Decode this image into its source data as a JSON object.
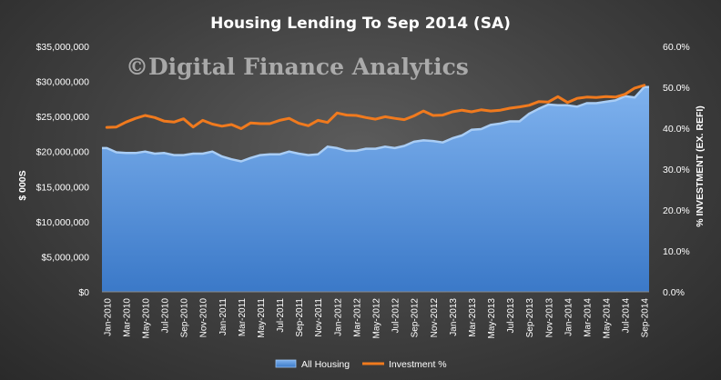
{
  "chart_data": {
    "type": "area+line",
    "title": "Housing  Lending To Sep 2014 (SA)",
    "watermark": "©Digital Finance Analytics",
    "ylabel_left": "$ 000S",
    "ylabel_right": "% INVESTMENT (EX. REFI)",
    "ylim_left": [
      0,
      35000000
    ],
    "ylim_right": [
      0,
      60
    ],
    "yticks_left": [
      "$0",
      "$5,000,000",
      "$10,000,000",
      "$15,000,000",
      "$20,000,000",
      "$25,000,000",
      "$30,000,000",
      "$35,000,000"
    ],
    "yticks_right": [
      "0.0%",
      "10.0%",
      "20.0%",
      "30.0%",
      "40.0%",
      "50.0%",
      "60.0%"
    ],
    "x": [
      "Jan-2010",
      "Feb-2010",
      "Mar-2010",
      "Apr-2010",
      "May-2010",
      "Jun-2010",
      "Jul-2010",
      "Aug-2010",
      "Sep-2010",
      "Oct-2010",
      "Nov-2010",
      "Dec-2010",
      "Jan-2011",
      "Feb-2011",
      "Mar-2011",
      "Apr-2011",
      "May-2011",
      "Jun-2011",
      "Jul-2011",
      "Aug-2011",
      "Sep-2011",
      "Oct-2011",
      "Nov-2011",
      "Dec-2011",
      "Jan-2012",
      "Feb-2012",
      "Mar-2012",
      "Apr-2012",
      "May-2012",
      "Jun-2012",
      "Jul-2012",
      "Aug-2012",
      "Sep-2012",
      "Oct-2012",
      "Nov-2012",
      "Dec-2012",
      "Jan-2013",
      "Feb-2013",
      "Mar-2013",
      "Apr-2013",
      "May-2013",
      "Jun-2013",
      "Jul-2013",
      "Aug-2013",
      "Sep-2013",
      "Oct-2013",
      "Nov-2013",
      "Dec-2013",
      "Jan-2014",
      "Feb-2014",
      "Mar-2014",
      "Apr-2014",
      "May-2014",
      "Jun-2014",
      "Jul-2014",
      "Aug-2014",
      "Sep-2014"
    ],
    "x_tick_labels": [
      "Jan-2010",
      "Mar-2010",
      "May-2010",
      "Jul-2010",
      "Sep-2010",
      "Nov-2010",
      "Jan-2011",
      "Mar-2011",
      "May-2011",
      "Jul-2011",
      "Sep-2011",
      "Nov-2011",
      "Jan-2012",
      "Mar-2012",
      "May-2012",
      "Jul-2012",
      "Sep-2012",
      "Nov-2012",
      "Jan-2013",
      "Mar-2013",
      "May-2013",
      "Jul-2013",
      "Sep-2013",
      "Nov-2013",
      "Jan-2014",
      "Mar-2014",
      "May-2014",
      "Jul-2014",
      "Sep-2014"
    ],
    "series": [
      {
        "name": "All Housing",
        "axis": "left",
        "style": "area",
        "color": "#4f8fd8",
        "values": [
          20500000,
          19900000,
          19800000,
          19800000,
          20000000,
          19700000,
          19800000,
          19500000,
          19500000,
          19700000,
          19700000,
          20000000,
          19300000,
          18900000,
          18600000,
          19100000,
          19500000,
          19600000,
          19600000,
          20000000,
          19700000,
          19500000,
          19600000,
          20700000,
          20500000,
          20100000,
          20100000,
          20400000,
          20400000,
          20700000,
          20500000,
          20800000,
          21400000,
          21600000,
          21500000,
          21300000,
          21900000,
          22300000,
          23100000,
          23200000,
          23800000,
          24000000,
          24300000,
          24300000,
          25400000,
          26100000,
          26700000,
          26600000,
          26600000,
          26400000,
          26900000,
          26900000,
          27100000,
          27300000,
          27900000,
          27700000,
          29200000
        ]
      },
      {
        "name": "Investment %",
        "axis": "right",
        "style": "line",
        "color": "#f07a1e",
        "values": [
          40.2,
          40.3,
          41.5,
          42.4,
          43.1,
          42.6,
          41.7,
          41.5,
          42.3,
          40.3,
          41.9,
          41.0,
          40.5,
          40.9,
          39.9,
          41.3,
          41.1,
          41.1,
          41.9,
          42.4,
          41.2,
          40.6,
          41.9,
          41.4,
          43.7,
          43.2,
          43.1,
          42.6,
          42.2,
          42.8,
          42.4,
          42.1,
          43.0,
          44.2,
          43.1,
          43.2,
          44.0,
          44.4,
          44.0,
          44.5,
          44.2,
          44.4,
          44.9,
          45.2,
          45.6,
          46.5,
          46.4,
          47.7,
          46.3,
          47.3,
          47.6,
          47.5,
          47.7,
          47.6,
          48.3,
          49.8,
          50.5
        ]
      }
    ],
    "legend": {
      "placement": "bottom",
      "entries": [
        "All Housing",
        "Investment %"
      ]
    },
    "grid": false
  }
}
